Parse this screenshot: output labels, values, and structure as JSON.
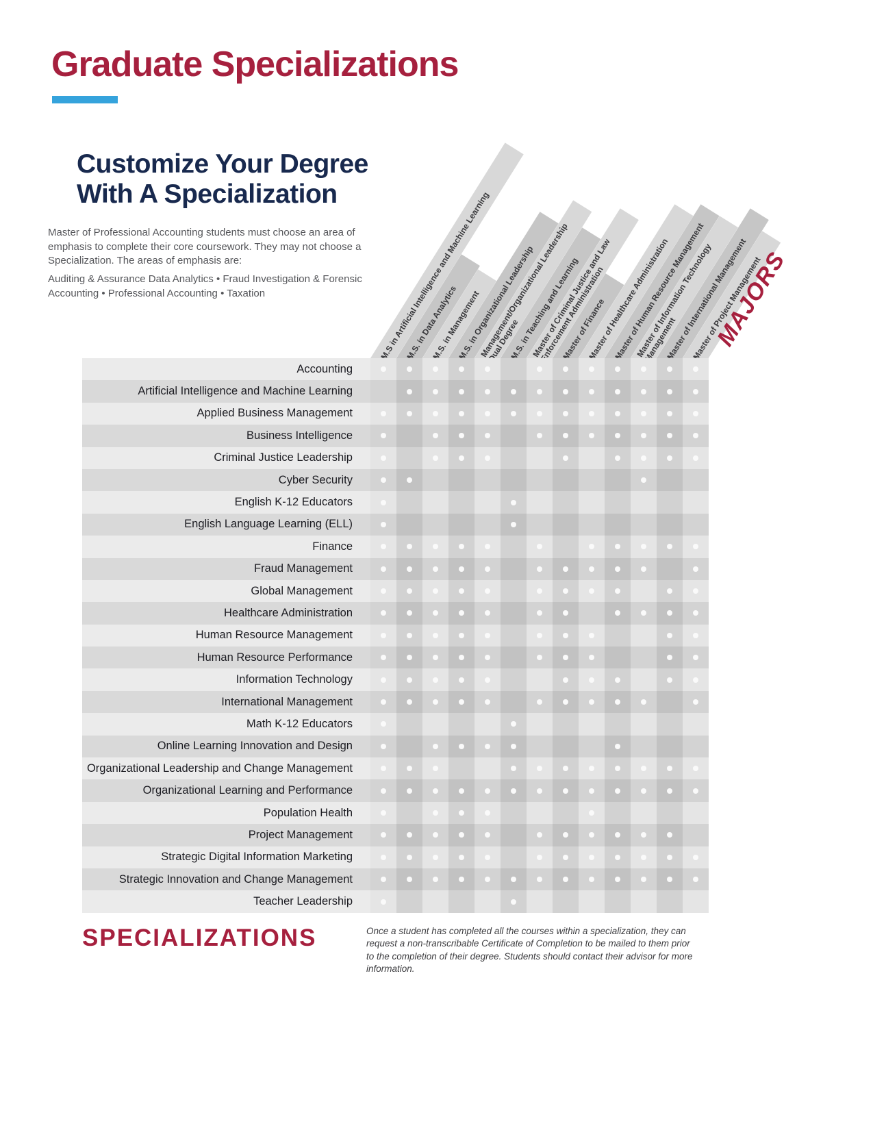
{
  "page_title": "Graduate Specializations",
  "intro": {
    "heading": "Customize Your Degree\nWith A Specialization",
    "body": "Master of Professional Accounting students must choose an area of emphasis to complete their core coursework. They may not choose a Specialization. The areas of emphasis are:",
    "emphasis_areas": "Auditing & Assurance Data Analytics • Fraud Investigation & Forensic Accounting • Professional Accounting • Taxation"
  },
  "footnote": "Once a student has completed all the courses within a specialization, they can request a non-transcribable Certificate of Completion to be mailed to them prior to the completion of their degree. Students should contact their advisor for more information.",
  "colors": {
    "accent_red": "#a6203e",
    "heading_navy": "#18294e",
    "underline_blue": "#35a3dc",
    "dot": "#fafafa"
  },
  "chart_data": {
    "type": "table",
    "columns_title": "MAJORS",
    "rows_title": "SPECIALIZATIONS",
    "columns": [
      "M.S in Artificial Intelligence and Machine Learning",
      "M.S. in Data Analytics",
      "M.S. in Management",
      "M.S. in Organizational Leadership",
      "Management/Organizational Leadership\nDual Degree",
      "M.S. in Teaching and Learning",
      "Master of Criminal Justice and Law\nEnforcement Administration",
      "Master of Finance",
      "Master of Healthcare Administration",
      "Master of Human Resource Management",
      "Master of Information Technology\nManagement",
      "Master of International Management",
      "Master of Project Management"
    ],
    "rows": [
      {
        "label": "Accounting",
        "dots": [
          1,
          1,
          1,
          1,
          1,
          0,
          1,
          1,
          1,
          1,
          1,
          1,
          1
        ]
      },
      {
        "label": "Artificial Intelligence and Machine Learning",
        "dots": [
          0,
          1,
          1,
          1,
          1,
          1,
          1,
          1,
          1,
          1,
          1,
          1,
          1
        ]
      },
      {
        "label": "Applied Business Management",
        "dots": [
          1,
          1,
          1,
          1,
          1,
          1,
          1,
          1,
          1,
          1,
          1,
          1,
          1
        ]
      },
      {
        "label": "Business Intelligence",
        "dots": [
          1,
          0,
          1,
          1,
          1,
          0,
          1,
          1,
          1,
          1,
          1,
          1,
          1
        ]
      },
      {
        "label": "Criminal Justice Leadership",
        "dots": [
          1,
          0,
          1,
          1,
          1,
          0,
          0,
          1,
          0,
          1,
          1,
          1,
          1
        ]
      },
      {
        "label": "Cyber Security",
        "dots": [
          1,
          1,
          0,
          0,
          0,
          0,
          0,
          0,
          0,
          0,
          1,
          0,
          0
        ]
      },
      {
        "label": "English K-12 Educators",
        "dots": [
          1,
          0,
          0,
          0,
          0,
          1,
          0,
          0,
          0,
          0,
          0,
          0,
          0
        ]
      },
      {
        "label": "English Language Learning (ELL)",
        "dots": [
          1,
          0,
          0,
          0,
          0,
          1,
          0,
          0,
          0,
          0,
          0,
          0,
          0
        ]
      },
      {
        "label": "Finance",
        "dots": [
          1,
          1,
          1,
          1,
          1,
          0,
          1,
          0,
          1,
          1,
          1,
          1,
          1
        ]
      },
      {
        "label": "Fraud Management",
        "dots": [
          1,
          1,
          1,
          1,
          1,
          0,
          1,
          1,
          1,
          1,
          1,
          0,
          1
        ]
      },
      {
        "label": "Global Management",
        "dots": [
          1,
          1,
          1,
          1,
          1,
          0,
          1,
          1,
          1,
          1,
          0,
          1,
          1
        ]
      },
      {
        "label": "Healthcare Administration",
        "dots": [
          1,
          1,
          1,
          1,
          1,
          0,
          1,
          1,
          0,
          1,
          1,
          1,
          1
        ]
      },
      {
        "label": "Human Resource Management",
        "dots": [
          1,
          1,
          1,
          1,
          1,
          0,
          1,
          1,
          1,
          0,
          0,
          1,
          1
        ]
      },
      {
        "label": "Human Resource Performance",
        "dots": [
          1,
          1,
          1,
          1,
          1,
          0,
          1,
          1,
          1,
          0,
          0,
          1,
          1
        ]
      },
      {
        "label": "Information Technology",
        "dots": [
          1,
          1,
          1,
          1,
          1,
          0,
          0,
          1,
          1,
          1,
          0,
          1,
          1
        ]
      },
      {
        "label": "International Management",
        "dots": [
          1,
          1,
          1,
          1,
          1,
          0,
          1,
          1,
          1,
          1,
          1,
          0,
          1
        ]
      },
      {
        "label": "Math K-12 Educators",
        "dots": [
          1,
          0,
          0,
          0,
          0,
          1,
          0,
          0,
          0,
          0,
          0,
          0,
          0
        ]
      },
      {
        "label": "Online Learning Innovation and Design",
        "dots": [
          1,
          0,
          1,
          1,
          1,
          1,
          0,
          0,
          0,
          1,
          0,
          0,
          0
        ]
      },
      {
        "label": "Organizational Leadership and Change Management",
        "dots": [
          1,
          1,
          1,
          0,
          0,
          1,
          1,
          1,
          1,
          1,
          1,
          1,
          1
        ]
      },
      {
        "label": "Organizational Learning and Performance",
        "dots": [
          1,
          1,
          1,
          1,
          1,
          1,
          1,
          1,
          1,
          1,
          1,
          1,
          1
        ]
      },
      {
        "label": "Population Health",
        "dots": [
          1,
          0,
          1,
          1,
          1,
          0,
          0,
          0,
          1,
          0,
          0,
          0,
          0
        ]
      },
      {
        "label": "Project Management",
        "dots": [
          1,
          1,
          1,
          1,
          1,
          0,
          1,
          1,
          1,
          1,
          1,
          1,
          0
        ]
      },
      {
        "label": "Strategic Digital Information Marketing",
        "dots": [
          1,
          1,
          1,
          1,
          1,
          0,
          1,
          1,
          1,
          1,
          1,
          1,
          1
        ]
      },
      {
        "label": "Strategic Innovation and Change Management",
        "dots": [
          1,
          1,
          1,
          1,
          1,
          1,
          1,
          1,
          1,
          1,
          1,
          1,
          1
        ]
      },
      {
        "label": "Teacher Leadership",
        "dots": [
          1,
          0,
          0,
          0,
          0,
          1,
          0,
          0,
          0,
          0,
          0,
          0,
          0
        ]
      }
    ]
  }
}
